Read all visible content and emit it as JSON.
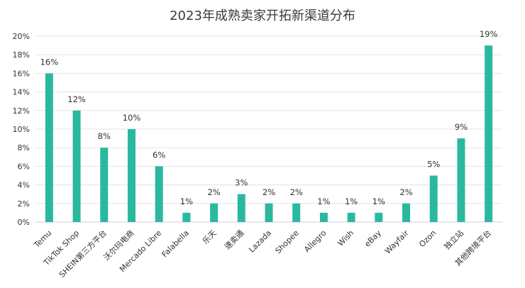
{
  "chart_data": {
    "type": "bar",
    "title": "2023年成熟卖家开拓新渠道分布",
    "categories": [
      "Temu",
      "TikTok Shop",
      "SHEIN第三方平台",
      "沃尔玛电商",
      "Mercado Libre",
      "Falabella",
      "乐天",
      "速卖通",
      "Lazada",
      "Shopee",
      "Allegro",
      "Wish",
      "eBay",
      "Wayfair",
      "Ozon",
      "独立站",
      "其他跨境平台"
    ],
    "values": [
      16,
      12,
      8,
      10,
      6,
      1,
      2,
      3,
      2,
      2,
      1,
      1,
      1,
      2,
      5,
      9,
      19
    ],
    "data_labels": [
      "16%",
      "12%",
      "8%",
      "10%",
      "6%",
      "1%",
      "2%",
      "3%",
      "2%",
      "2%",
      "1%",
      "1%",
      "1%",
      "2%",
      "5%",
      "9%",
      "19%"
    ],
    "y_ticks": [
      "0%",
      "2%",
      "4%",
      "6%",
      "8%",
      "10%",
      "12%",
      "14%",
      "16%",
      "18%",
      "20%"
    ],
    "ylim": [
      0,
      20
    ],
    "grid": true,
    "bar_color": "#2bb8a0",
    "xlabel": "",
    "ylabel": ""
  }
}
